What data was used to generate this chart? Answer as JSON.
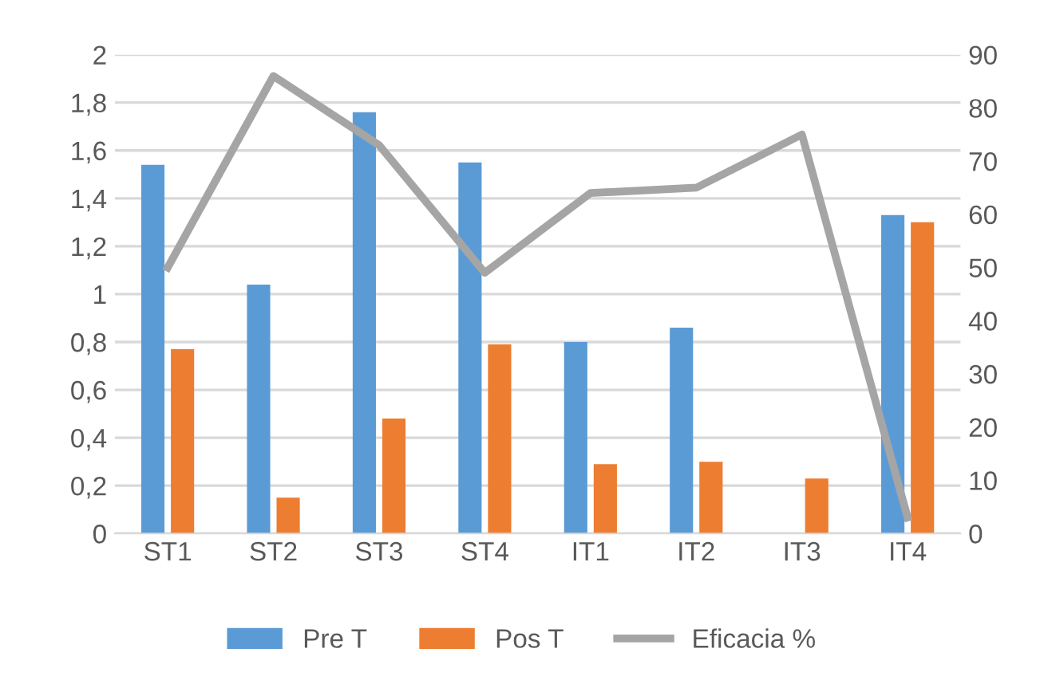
{
  "chart_data": {
    "type": "bar",
    "categories": [
      "ST1",
      "ST2",
      "ST3",
      "ST4",
      "IT1",
      "IT2",
      "IT3",
      "IT4"
    ],
    "series": [
      {
        "name": "Pre T",
        "color": "#5b9bd5",
        "values": [
          1.54,
          1.04,
          1.76,
          1.55,
          0.8,
          0.86,
          null,
          1.33
        ]
      },
      {
        "name": "Pos T",
        "color": "#ed7d31",
        "values": [
          0.77,
          0.15,
          0.48,
          0.79,
          0.29,
          0.3,
          0.23,
          1.3
        ]
      },
      {
        "name": "Eficacia %",
        "color": "#a5a5a5",
        "type": "line",
        "axis": "y2",
        "values": [
          50,
          86,
          73,
          49,
          64,
          65,
          75,
          3
        ]
      }
    ],
    "ylim": [
      0,
      2
    ],
    "yticks": [
      0,
      {
        "value": 0.2,
        "label": "0,2"
      },
      {
        "value": 0.4,
        "label": "0,4"
      },
      {
        "value": 0.6,
        "label": "0,6"
      },
      {
        "value": 0.8,
        "label": "0,8"
      },
      1,
      {
        "value": 1.2,
        "label": "1,2"
      },
      {
        "value": 1.4,
        "label": "1,4"
      },
      {
        "value": 1.6,
        "label": "1,6"
      },
      {
        "value": 1.8,
        "label": "1,8"
      },
      2
    ],
    "y2lim": [
      0,
      90
    ],
    "y2ticks": [
      0,
      10,
      20,
      30,
      40,
      50,
      60,
      70,
      80,
      90
    ],
    "grid": "y",
    "legend": "bottom",
    "marker": "none"
  }
}
